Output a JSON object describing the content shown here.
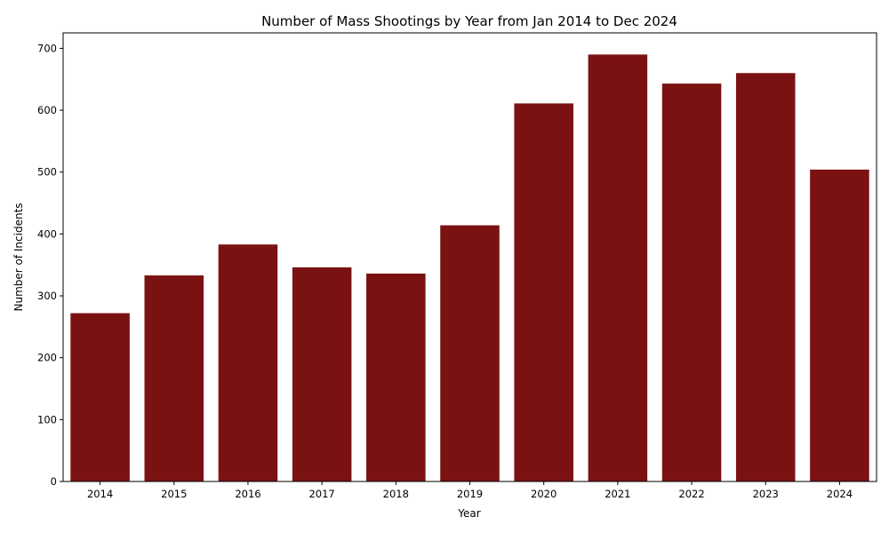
{
  "chart_data": {
    "type": "bar",
    "title": "Number of Mass Shootings by Year from Jan 2014 to Dec 2024",
    "xlabel": "Year",
    "ylabel": "Number of Incidents",
    "categories": [
      "2014",
      "2015",
      "2016",
      "2017",
      "2018",
      "2019",
      "2020",
      "2021",
      "2022",
      "2023",
      "2024"
    ],
    "values": [
      272,
      333,
      383,
      346,
      336,
      414,
      611,
      690,
      643,
      660,
      504
    ],
    "ylim": [
      0,
      725
    ],
    "yticks": [
      0,
      100,
      200,
      300,
      400,
      500,
      600,
      700
    ],
    "bar_color": "#7b1212",
    "grid": false,
    "legend": false
  }
}
